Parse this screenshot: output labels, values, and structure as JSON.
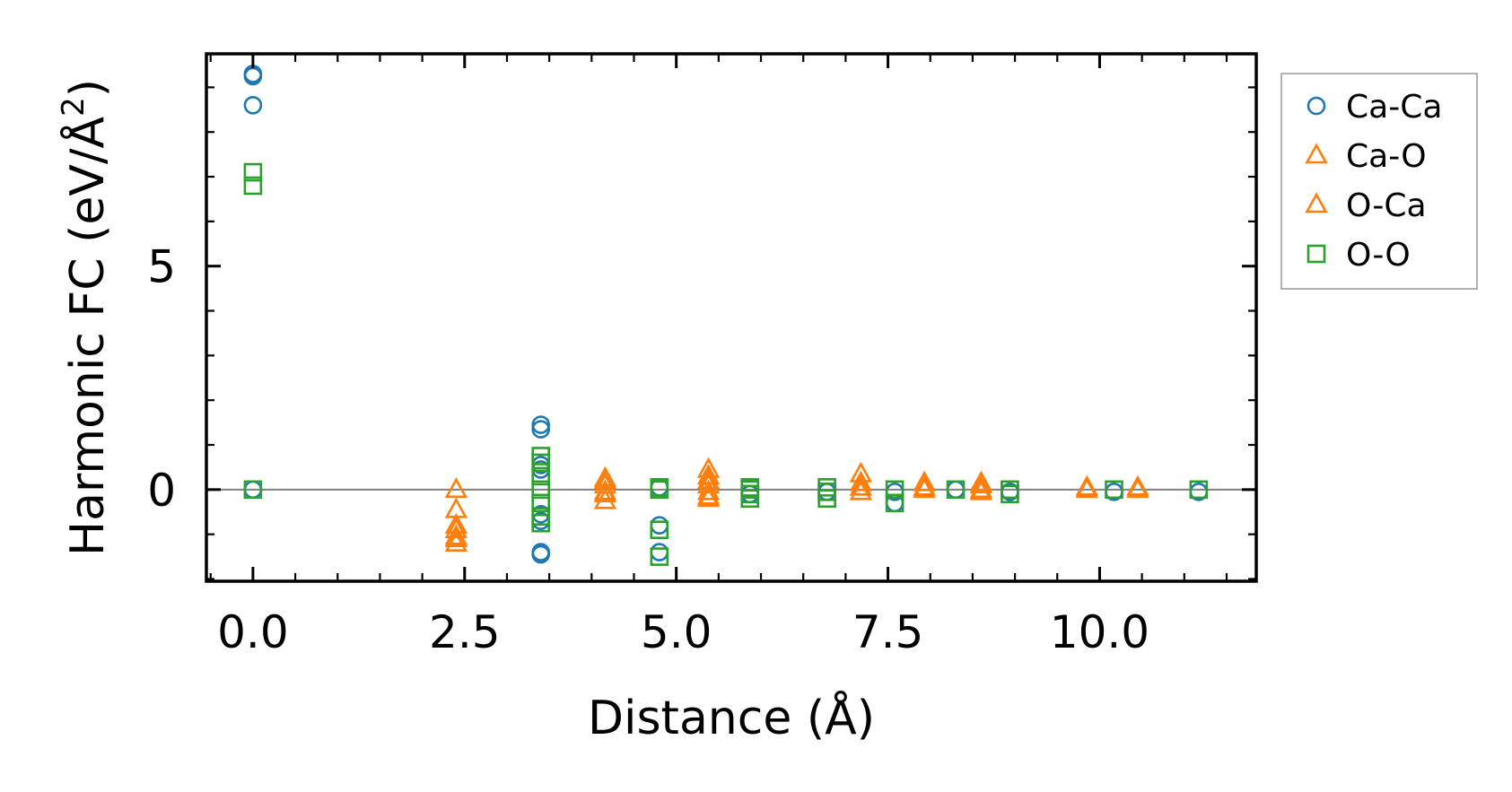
{
  "chart_data": {
    "type": "scatter",
    "xlabel": "Distance (Å)",
    "ylabel_main": "Harmonic FC (eV/Å",
    "ylabel_sup": "2",
    "ylabel_close": ")",
    "xlim": [
      -0.55,
      11.85
    ],
    "ylim": [
      -2.05,
      9.75
    ],
    "xticks": [
      0.0,
      2.5,
      5.0,
      7.5,
      10.0
    ],
    "xtick_labels": [
      "0.0",
      "2.5",
      "5.0",
      "7.5",
      "10.0"
    ],
    "yticks": [
      0,
      5
    ],
    "ytick_labels": [
      "0",
      "5"
    ],
    "x_minor_step": 0.5,
    "y_minor_step": 1,
    "zero_line": true,
    "grid": false,
    "legend_position": "outside-right-top",
    "series": [
      {
        "name": "Ca-Ca",
        "marker": "circle",
        "color": "#1f77b4",
        "points": [
          [
            0.0,
            9.3
          ],
          [
            0.0,
            9.25
          ],
          [
            0.0,
            8.6
          ],
          [
            0.0,
            0.0
          ],
          [
            3.4,
            1.45
          ],
          [
            3.4,
            1.35
          ],
          [
            3.4,
            0.55
          ],
          [
            3.4,
            0.45
          ],
          [
            3.4,
            -0.55
          ],
          [
            3.4,
            -0.7
          ],
          [
            3.4,
            -1.4
          ],
          [
            3.4,
            -1.45
          ],
          [
            4.8,
            0.05
          ],
          [
            4.8,
            -0.8
          ],
          [
            4.8,
            -1.4
          ],
          [
            5.87,
            -0.1
          ],
          [
            6.78,
            -0.05
          ],
          [
            7.58,
            -0.05
          ],
          [
            7.58,
            -0.3
          ],
          [
            8.3,
            0.0
          ],
          [
            8.94,
            -0.05
          ],
          [
            10.17,
            -0.05
          ],
          [
            11.17,
            -0.05
          ]
        ]
      },
      {
        "name": "Ca-O",
        "marker": "triangle",
        "color": "#ff7f0e",
        "points": [
          [
            2.4,
            0.0
          ],
          [
            2.4,
            -0.45
          ],
          [
            2.4,
            -0.9
          ],
          [
            2.4,
            -1.05
          ],
          [
            2.4,
            -1.2
          ],
          [
            4.16,
            0.25
          ],
          [
            4.16,
            0.1
          ],
          [
            4.16,
            -0.05
          ],
          [
            4.16,
            -0.25
          ],
          [
            5.38,
            0.45
          ],
          [
            5.38,
            0.3
          ],
          [
            5.38,
            0.1
          ],
          [
            5.38,
            -0.05
          ],
          [
            5.38,
            -0.15
          ],
          [
            7.18,
            0.35
          ],
          [
            7.18,
            0.05
          ],
          [
            7.18,
            -0.05
          ],
          [
            7.93,
            0.15
          ],
          [
            7.93,
            0.0
          ],
          [
            8.6,
            0.15
          ],
          [
            8.6,
            -0.05
          ],
          [
            9.85,
            0.05
          ],
          [
            10.45,
            0.05
          ]
        ]
      },
      {
        "name": "O-Ca",
        "marker": "triangle",
        "color": "#ff7f0e",
        "points": [
          [
            2.4,
            -0.8
          ],
          [
            2.4,
            -1.1
          ],
          [
            4.16,
            0.2
          ],
          [
            4.16,
            -0.1
          ],
          [
            5.38,
            0.2
          ],
          [
            5.38,
            -0.2
          ],
          [
            7.18,
            0.15
          ],
          [
            7.93,
            0.05
          ],
          [
            8.6,
            0.1
          ],
          [
            8.6,
            0.0
          ],
          [
            9.85,
            0.0
          ],
          [
            10.45,
            0.0
          ]
        ]
      },
      {
        "name": "O-O",
        "marker": "square",
        "color": "#2ca02c",
        "points": [
          [
            0.0,
            7.1
          ],
          [
            0.0,
            6.8
          ],
          [
            0.0,
            0.0
          ],
          [
            3.4,
            0.75
          ],
          [
            3.4,
            0.6
          ],
          [
            3.4,
            0.3
          ],
          [
            3.4,
            0.0
          ],
          [
            3.4,
            -0.3
          ],
          [
            3.4,
            -0.6
          ],
          [
            3.4,
            -0.75
          ],
          [
            4.8,
            0.05
          ],
          [
            4.8,
            0.0
          ],
          [
            4.8,
            -0.9
          ],
          [
            4.8,
            -1.5
          ],
          [
            5.87,
            0.05
          ],
          [
            5.87,
            0.0
          ],
          [
            5.87,
            -0.1
          ],
          [
            5.87,
            -0.2
          ],
          [
            6.78,
            0.05
          ],
          [
            6.78,
            -0.05
          ],
          [
            6.78,
            -0.2
          ],
          [
            7.58,
            0.0
          ],
          [
            7.58,
            -0.3
          ],
          [
            8.3,
            0.0
          ],
          [
            8.94,
            0.0
          ],
          [
            8.94,
            -0.1
          ],
          [
            10.17,
            0.0
          ],
          [
            11.17,
            0.0
          ]
        ]
      }
    ]
  }
}
